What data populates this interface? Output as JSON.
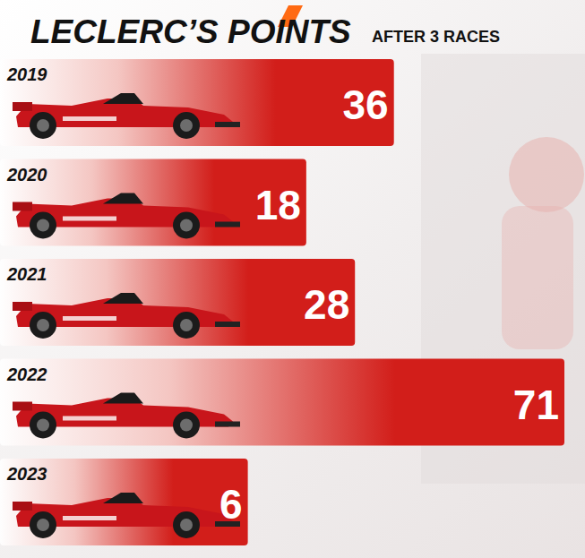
{
  "chart_data": {
    "type": "bar",
    "orientation": "horizontal",
    "title": "LECLERC’S POINTS",
    "subtitle": "AFTER 3 RACES",
    "categories": [
      "2019",
      "2020",
      "2021",
      "2022",
      "2023"
    ],
    "values": [
      36,
      18,
      28,
      71,
      6
    ],
    "color": "#d21e1a",
    "xlim": [
      0,
      71
    ],
    "data_labels": true,
    "tick_labels": "y",
    "grid": false
  }
}
